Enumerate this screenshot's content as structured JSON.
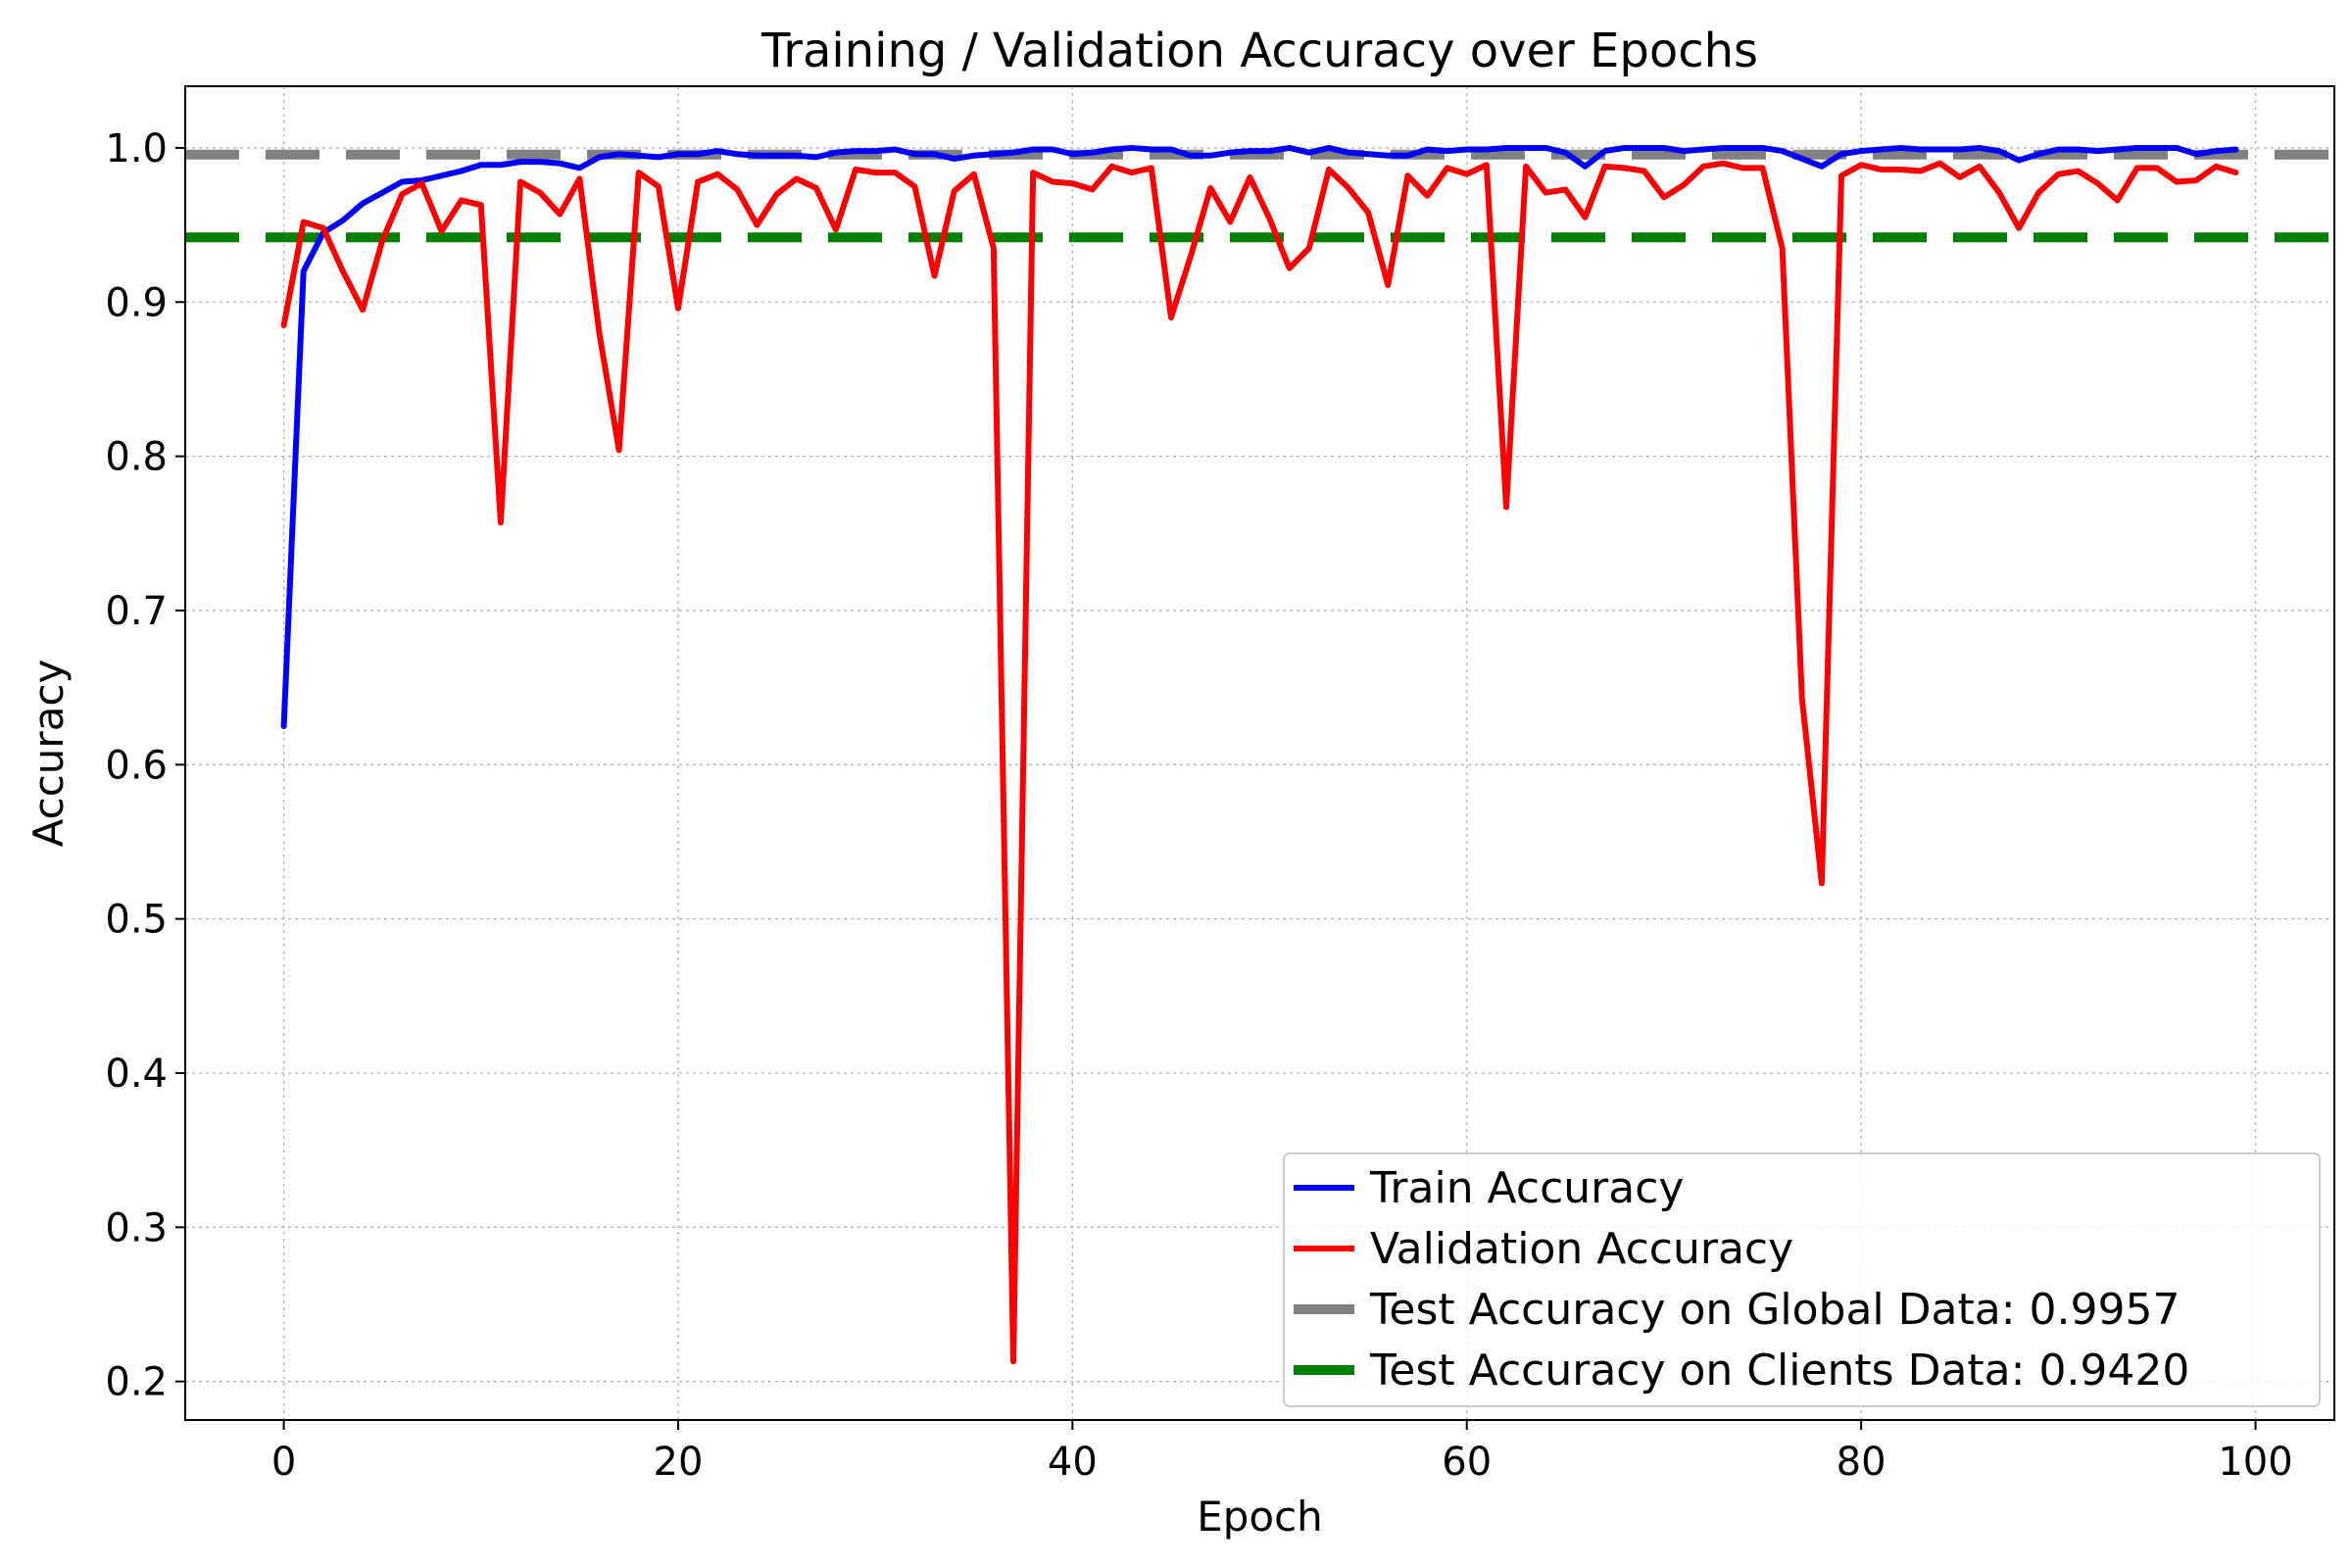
{
  "chart_data": {
    "type": "line",
    "title": "Training / Validation Accuracy over Epochs",
    "xlabel": "Epoch",
    "ylabel": "Accuracy",
    "xlim": [
      -5,
      104
    ],
    "ylim": [
      0.175,
      1.04
    ],
    "xticks": [
      0,
      20,
      40,
      60,
      80,
      100
    ],
    "yticks": [
      0.2,
      0.3,
      0.4,
      0.5,
      0.6,
      0.7,
      0.8,
      0.9,
      1.0
    ],
    "grid": true,
    "legend_position": "lower-right",
    "series": [
      {
        "name": "Train Accuracy",
        "color": "#0000ff",
        "style": "solid",
        "x": [
          0,
          1,
          2,
          3,
          4,
          5,
          6,
          7,
          8,
          9,
          10,
          11,
          12,
          13,
          14,
          15,
          16,
          17,
          18,
          19,
          20,
          21,
          22,
          23,
          24,
          25,
          26,
          27,
          28,
          29,
          30,
          31,
          32,
          33,
          34,
          35,
          36,
          37,
          38,
          39,
          40,
          41,
          42,
          43,
          44,
          45,
          46,
          47,
          48,
          49,
          50,
          51,
          52,
          53,
          54,
          55,
          56,
          57,
          58,
          59,
          60,
          61,
          62,
          63,
          64,
          65,
          66,
          67,
          68,
          69,
          70,
          71,
          72,
          73,
          74,
          75,
          76,
          77,
          78,
          79,
          80,
          81,
          82,
          83,
          84,
          85,
          86,
          87,
          88,
          89,
          90,
          91,
          92,
          93,
          94,
          95,
          96,
          97,
          98,
          99
        ],
        "values": [
          0.625,
          0.92,
          0.945,
          0.953,
          0.964,
          0.971,
          0.978,
          0.979,
          0.982,
          0.985,
          0.989,
          0.989,
          0.991,
          0.991,
          0.99,
          0.987,
          0.994,
          0.996,
          0.995,
          0.994,
          0.996,
          0.996,
          0.998,
          0.996,
          0.995,
          0.995,
          0.995,
          0.994,
          0.997,
          0.998,
          0.998,
          0.999,
          0.996,
          0.996,
          0.993,
          0.995,
          0.996,
          0.997,
          0.999,
          0.999,
          0.996,
          0.997,
          0.999,
          1.0,
          0.999,
          0.999,
          0.995,
          0.995,
          0.997,
          0.998,
          0.998,
          1.0,
          0.997,
          1.0,
          0.997,
          0.996,
          0.995,
          0.995,
          0.999,
          0.998,
          0.999,
          0.999,
          1.0,
          1.0,
          1.0,
          0.997,
          0.988,
          0.998,
          1.0,
          1.0,
          1.0,
          0.998,
          0.999,
          1.0,
          1.0,
          1.0,
          0.998,
          0.993,
          0.988,
          0.996,
          0.998,
          0.999,
          1.0,
          0.999,
          0.999,
          0.999,
          1.0,
          0.998,
          0.992,
          0.996,
          0.999,
          0.999,
          0.998,
          0.999,
          1.0,
          1.0,
          1.0,
          0.996,
          0.998,
          0.999
        ]
      },
      {
        "name": "Validation Accuracy",
        "color": "#ff0000",
        "style": "solid",
        "x": [
          0,
          1,
          2,
          3,
          4,
          5,
          6,
          7,
          8,
          9,
          10,
          11,
          12,
          13,
          14,
          15,
          16,
          17,
          18,
          19,
          20,
          21,
          22,
          23,
          24,
          25,
          26,
          27,
          28,
          29,
          30,
          31,
          32,
          33,
          34,
          35,
          36,
          37,
          38,
          39,
          40,
          41,
          42,
          43,
          44,
          45,
          46,
          47,
          48,
          49,
          50,
          51,
          52,
          53,
          54,
          55,
          56,
          57,
          58,
          59,
          60,
          61,
          62,
          63,
          64,
          65,
          66,
          67,
          68,
          69,
          70,
          71,
          72,
          73,
          74,
          75,
          76,
          77,
          78,
          79,
          80,
          81,
          82,
          83,
          84,
          85,
          86,
          87,
          88,
          89,
          90,
          91,
          92,
          93,
          94,
          95,
          96,
          97,
          98,
          99
        ],
        "values": [
          0.885,
          0.952,
          0.948,
          0.92,
          0.895,
          0.94,
          0.97,
          0.977,
          0.946,
          0.966,
          0.963,
          0.757,
          0.978,
          0.971,
          0.957,
          0.98,
          0.88,
          0.804,
          0.984,
          0.975,
          0.896,
          0.978,
          0.983,
          0.973,
          0.95,
          0.97,
          0.98,
          0.974,
          0.947,
          0.986,
          0.984,
          0.984,
          0.975,
          0.917,
          0.972,
          0.983,
          0.935,
          0.213,
          0.984,
          0.978,
          0.977,
          0.973,
          0.988,
          0.984,
          0.987,
          0.89,
          0.93,
          0.974,
          0.952,
          0.981,
          0.954,
          0.922,
          0.935,
          0.986,
          0.974,
          0.958,
          0.911,
          0.982,
          0.969,
          0.987,
          0.983,
          0.989,
          0.767,
          0.988,
          0.971,
          0.973,
          0.955,
          0.988,
          0.987,
          0.985,
          0.968,
          0.976,
          0.988,
          0.99,
          0.987,
          0.987,
          0.935,
          0.643,
          0.523,
          0.982,
          0.989,
          0.986,
          0.986,
          0.985,
          0.99,
          0.981,
          0.988,
          0.971,
          0.948,
          0.971,
          0.983,
          0.985,
          0.977,
          0.966,
          0.987,
          0.987,
          0.978,
          0.979,
          0.988,
          0.984
        ]
      }
    ],
    "reference_lines": [
      {
        "name": "Test Accuracy on Global Data: 0.9957",
        "value": 0.9957,
        "color": "#808080",
        "style": "dashed"
      },
      {
        "name": "Test Accuracy on Clients Data: 0.9420",
        "value": 0.942,
        "color": "#008000",
        "style": "dashed"
      }
    ]
  }
}
